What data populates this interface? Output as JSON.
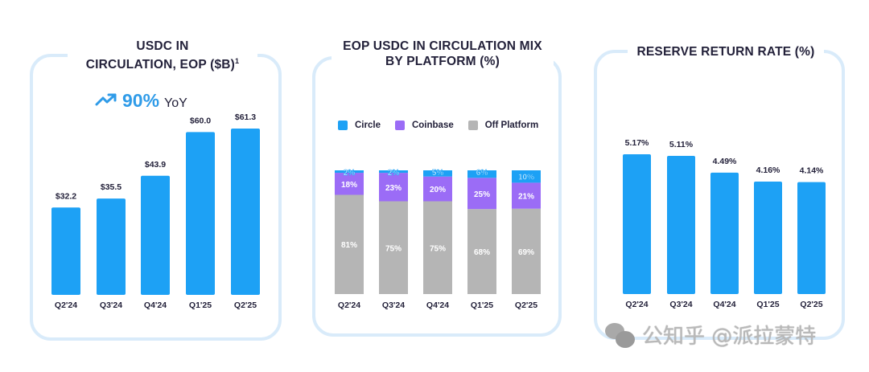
{
  "watermark": {
    "text": "公知乎 @派拉蒙特",
    "icon": "wechat-icon"
  },
  "colors": {
    "primary_blue": "#1da1f5",
    "coinbase_purple": "#9b6cf6",
    "off_platform_gray": "#b5b5b5",
    "frame": "#d9ebfa",
    "title": "#23213a"
  },
  "panels": {
    "circulation": {
      "title_line1": "USDC IN",
      "title_line2": "CIRCULATION, EOP ($B)",
      "title_footnote": "1",
      "yoy_icon": "trending-up-icon",
      "yoy_value": "90%",
      "yoy_label": "YoY"
    },
    "mix": {
      "title_line1": "EOP USDC IN CIRCULATION MIX",
      "title_line2": "BY PLATFORM (%)"
    },
    "reserve": {
      "title": "RESERVE RETURN RATE (%)"
    }
  },
  "chart_data": [
    {
      "type": "bar",
      "title": "USDC IN CIRCULATION, EOP ($B)",
      "categories": [
        "Q2'24",
        "Q3'24",
        "Q4'24",
        "Q1'25",
        "Q2'25"
      ],
      "values": [
        32.2,
        35.5,
        43.9,
        60.0,
        61.3
      ],
      "labels": [
        "$32.2",
        "$35.5",
        "$43.9",
        "$60.0",
        "$61.3"
      ],
      "xlabel": "",
      "ylabel": "",
      "ylim": [
        0,
        61.3
      ],
      "grid": false,
      "annotation": "90% YoY"
    },
    {
      "type": "bar",
      "stacked": true,
      "title": "EOP USDC IN CIRCULATION MIX BY PLATFORM (%)",
      "categories": [
        "Q2'24",
        "Q3'24",
        "Q4'24",
        "Q1'25",
        "Q2'25"
      ],
      "series": [
        {
          "name": "Off Platform",
          "values": [
            81,
            75,
            75,
            68,
            69
          ]
        },
        {
          "name": "Coinbase",
          "values": [
            18,
            23,
            20,
            25,
            21
          ]
        },
        {
          "name": "Circle",
          "values": [
            2,
            2,
            5,
            6,
            10
          ]
        }
      ],
      "legend": [
        "Circle",
        "Coinbase",
        "Off Platform"
      ],
      "legend_position": "top-left",
      "ylim": [
        0,
        100
      ],
      "grid": false
    },
    {
      "type": "bar",
      "title": "RESERVE RETURN RATE (%)",
      "categories": [
        "Q2'24",
        "Q3'24",
        "Q4'24",
        "Q1'25",
        "Q2'25"
      ],
      "values": [
        5.17,
        5.11,
        4.49,
        4.16,
        4.14
      ],
      "labels": [
        "5.17%",
        "5.11%",
        "4.49%",
        "4.16%",
        "4.14%"
      ],
      "ylim": [
        0,
        5.17
      ],
      "grid": false
    }
  ]
}
